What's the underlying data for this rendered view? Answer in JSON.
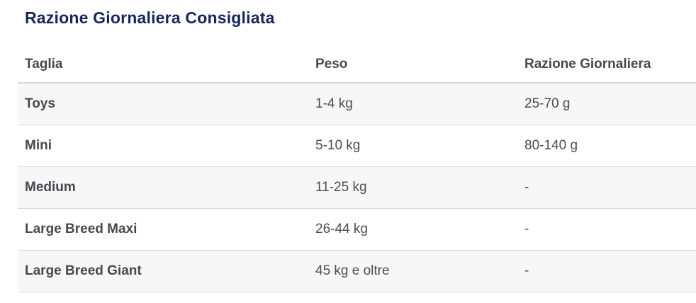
{
  "page": {
    "title": "Razione Giornaliera Consigliata"
  },
  "table": {
    "columns": [
      {
        "key": "taglia",
        "label": "Taglia"
      },
      {
        "key": "peso",
        "label": "Peso"
      },
      {
        "key": "razione",
        "label": "Razione Giornaliera"
      }
    ],
    "rows": [
      {
        "taglia": "Toys",
        "peso": "1-4 kg",
        "razione": "25-70 g"
      },
      {
        "taglia": "Mini",
        "peso": "5-10 kg",
        "razione": "80-140 g"
      },
      {
        "taglia": "Medium",
        "peso": "11-25 kg",
        "razione": "-"
      },
      {
        "taglia": "Large Breed Maxi",
        "peso": "26-44 kg",
        "razione": "-"
      },
      {
        "taglia": "Large Breed Giant",
        "peso": "45 kg e oltre",
        "razione": "-"
      }
    ]
  },
  "colors": {
    "title_text": "#15265b",
    "header_text": "#45494e",
    "body_text": "#4a4e53",
    "row_alt_background": "#f7f7f8",
    "row_border": "#d9d9d9",
    "page_background": "#ffffff"
  }
}
